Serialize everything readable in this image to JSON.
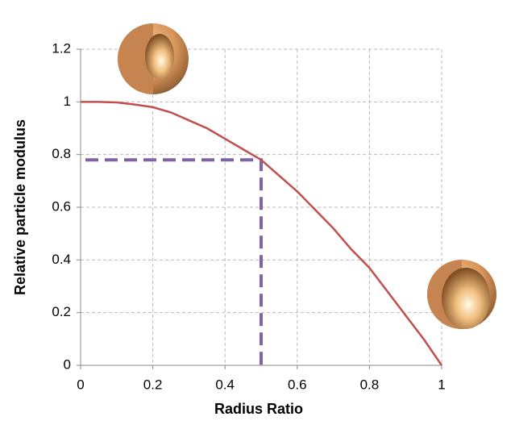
{
  "chart_data": {
    "type": "line",
    "x_label": "Radius Ratio",
    "y_label": "Relative particle modulus",
    "x": [
      0,
      0.05,
      0.1,
      0.15,
      0.2,
      0.25,
      0.3,
      0.35,
      0.4,
      0.45,
      0.5,
      0.55,
      0.6,
      0.65,
      0.7,
      0.75,
      0.8,
      0.85,
      0.9,
      0.95,
      1
    ],
    "series": [
      {
        "color": "#c0504d",
        "values": [
          1,
          1,
          0.998,
          0.99,
          0.98,
          0.96,
          0.93,
          0.9,
          0.86,
          0.82,
          0.78,
          0.72,
          0.66,
          0.59,
          0.52,
          0.44,
          0.37,
          0.28,
          0.19,
          0.1,
          0
        ]
      }
    ],
    "reference_point": {
      "x": 0.5,
      "y": 0.78,
      "color": "#8064a2"
    },
    "xlim": [
      0,
      1
    ],
    "xticks": [
      0,
      0.2,
      0.4,
      0.6,
      0.8,
      1
    ],
    "ylim": [
      0,
      1.2
    ],
    "yticks": [
      0,
      0.2,
      0.4,
      0.6,
      0.8,
      1,
      1.2
    ],
    "grid": true
  }
}
